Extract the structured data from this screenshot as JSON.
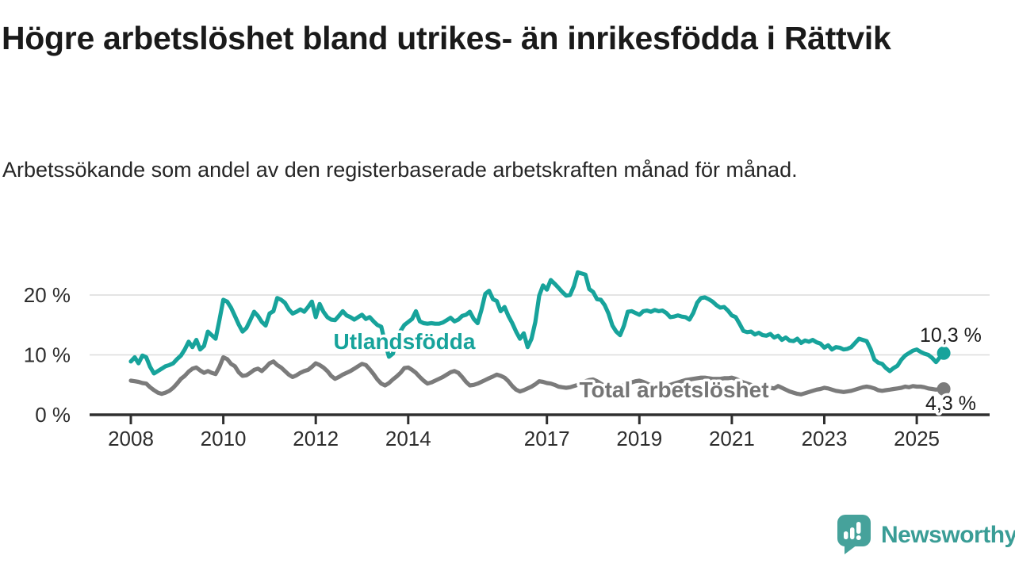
{
  "header": {
    "title": "Högre arbetslöshet bland utrikes- än inrikesfödda i Rättvik",
    "subtitle": "Arbetssökande som andel av den registerbaserade arbetskraften månad för månad."
  },
  "footer": {
    "brand": "Newsworthy",
    "logo_icon": "speech-bubble-bar-chart-icon"
  },
  "colors": {
    "foreign_born_line": "#17a39b",
    "total_line": "#7b7b7b",
    "total_label": "#757575",
    "axis": "#2f2f2f",
    "gridline": "#dcdcdc",
    "value_label": "#1a1a1a",
    "logo": "#3a9d96"
  },
  "chart_data": {
    "type": "line",
    "title": "Högre arbetslöshet bland utrikes- än inrikesfödda i Rättvik",
    "subtitle": "Arbetssökande som andel av den registerbaserade arbetskraften månad för månad.",
    "unit": "%",
    "xlim": [
      2007.1,
      2026.55
    ],
    "ylim": [
      0,
      26
    ],
    "grid": "horizontal-only",
    "legend_position": "inline-labels-on-lines",
    "x_ticks": [
      2008,
      2010,
      2012,
      2014,
      2017,
      2019,
      2021,
      2023,
      2025
    ],
    "x_tick_labels": [
      "2008",
      "2010",
      "2012",
      "2014",
      "2017",
      "2019",
      "2021",
      "2023",
      "2025"
    ],
    "y_ticks": [
      0,
      10,
      20
    ],
    "y_tick_labels": [
      "0 %",
      "10 %",
      "20 %"
    ],
    "series": [
      {
        "name": "Utlandsfödda",
        "color": "#17a39b",
        "label_color": "#17a39b",
        "end_label": "10,3 %",
        "end_value": 10.3,
        "start_year": 2008.0,
        "step_months": 1,
        "values": [
          8.9,
          9.6,
          8.6,
          9.9,
          9.6,
          8.0,
          6.9,
          7.3,
          7.7,
          8.1,
          8.3,
          8.6,
          9.3,
          9.9,
          10.9,
          12.2,
          11.3,
          12.5,
          10.9,
          11.5,
          13.9,
          13.3,
          12.7,
          15.8,
          19.2,
          18.9,
          17.9,
          16.5,
          15.1,
          13.9,
          14.5,
          15.8,
          17.2,
          16.5,
          15.5,
          14.9,
          16.9,
          17.3,
          19.5,
          19.2,
          18.7,
          17.6,
          16.9,
          17.2,
          17.6,
          17.2,
          18.0,
          18.9,
          16.3,
          18.5,
          17.2,
          16.3,
          15.9,
          15.8,
          16.5,
          17.3,
          16.6,
          16.3,
          15.9,
          16.3,
          16.7,
          16.0,
          16.3,
          15.6,
          15.0,
          14.7,
          12.0,
          9.7,
          10.2,
          12.5,
          14.0,
          15.0,
          15.5,
          16.0,
          17.3,
          15.6,
          15.3,
          15.2,
          15.3,
          15.2,
          15.2,
          15.4,
          15.8,
          16.2,
          15.6,
          15.9,
          16.5,
          16.7,
          17.2,
          16.0,
          15.3,
          17.5,
          20.2,
          20.7,
          19.3,
          19.0,
          17.3,
          18.0,
          16.5,
          15.3,
          13.9,
          12.7,
          13.6,
          11.3,
          12.7,
          15.5,
          19.9,
          21.6,
          20.9,
          22.5,
          21.9,
          21.2,
          20.5,
          19.9,
          20.0,
          21.5,
          23.8,
          23.6,
          23.4,
          21.0,
          20.5,
          19.3,
          19.2,
          18.3,
          16.9,
          14.9,
          13.9,
          13.3,
          14.9,
          17.2,
          17.3,
          17.0,
          16.7,
          17.3,
          17.4,
          17.2,
          17.5,
          17.3,
          17.4,
          17.0,
          16.3,
          16.4,
          16.6,
          16.4,
          16.3,
          15.9,
          17.0,
          18.7,
          19.5,
          19.6,
          19.3,
          18.9,
          18.3,
          17.9,
          18.0,
          17.4,
          16.6,
          16.3,
          15.2,
          14.0,
          13.8,
          13.9,
          13.4,
          13.7,
          13.3,
          13.2,
          13.5,
          12.9,
          13.2,
          12.5,
          12.9,
          12.4,
          12.3,
          12.7,
          12.0,
          12.4,
          12.2,
          12.5,
          12.1,
          11.9,
          11.2,
          11.6,
          10.9,
          11.3,
          11.2,
          10.9,
          11.0,
          11.3,
          12.0,
          12.7,
          12.5,
          12.3,
          11.0,
          9.2,
          8.7,
          8.5,
          7.8,
          7.3,
          7.8,
          8.2,
          9.2,
          9.9,
          10.3,
          10.7,
          10.9,
          10.5,
          10.2,
          10.0,
          9.5,
          8.8,
          9.6,
          10.3
        ]
      },
      {
        "name": "Total arbetslöshet",
        "color": "#7b7b7b",
        "label_color": "#757575",
        "end_label": "4,3 %",
        "end_value": 4.3,
        "start_year": 2008.0,
        "step_months": 1,
        "values": [
          5.7,
          5.6,
          5.5,
          5.3,
          5.2,
          4.6,
          4.1,
          3.7,
          3.5,
          3.7,
          4.0,
          4.5,
          5.2,
          6.0,
          6.5,
          7.2,
          7.7,
          7.9,
          7.4,
          7.0,
          7.3,
          7.0,
          6.8,
          8.0,
          9.6,
          9.3,
          8.5,
          8.1,
          7.1,
          6.5,
          6.6,
          7.0,
          7.5,
          7.7,
          7.3,
          7.9,
          8.6,
          8.9,
          8.3,
          7.9,
          7.3,
          6.7,
          6.3,
          6.6,
          7.0,
          7.3,
          7.5,
          8.0,
          8.6,
          8.3,
          7.9,
          7.3,
          6.5,
          6.0,
          6.3,
          6.7,
          7.0,
          7.3,
          7.7,
          8.1,
          8.5,
          8.3,
          7.6,
          6.8,
          5.9,
          5.2,
          4.9,
          5.3,
          5.9,
          6.4,
          7.0,
          7.8,
          7.9,
          7.5,
          7.0,
          6.3,
          5.7,
          5.2,
          5.4,
          5.7,
          6.0,
          6.3,
          6.7,
          7.1,
          7.3,
          7.0,
          6.3,
          5.5,
          4.9,
          5.0,
          5.2,
          5.5,
          5.8,
          6.1,
          6.4,
          6.7,
          6.5,
          6.2,
          5.6,
          4.8,
          4.2,
          3.9,
          4.1,
          4.4,
          4.7,
          5.1,
          5.6,
          5.5,
          5.3,
          5.2,
          5.0,
          4.7,
          4.6,
          4.5,
          4.6,
          4.8,
          5.0,
          5.3,
          5.6,
          5.8,
          5.9,
          5.6,
          5.2,
          4.8,
          4.5,
          4.4,
          4.5,
          4.7,
          4.9,
          5.1,
          5.4,
          5.6,
          5.7,
          5.5,
          5.2,
          4.9,
          4.7,
          4.6,
          4.7,
          4.9,
          5.0,
          5.2,
          5.4,
          5.6,
          5.8,
          5.9,
          6.0,
          6.1,
          6.2,
          6.2,
          6.1,
          6.0,
          6.0,
          6.0,
          6.1,
          6.1,
          6.2,
          6.0,
          5.7,
          5.4,
          5.2,
          5.0,
          4.8,
          4.7,
          4.6,
          4.5,
          4.5,
          4.4,
          4.8,
          4.5,
          4.2,
          3.9,
          3.7,
          3.5,
          3.4,
          3.6,
          3.8,
          4.0,
          4.2,
          4.3,
          4.5,
          4.4,
          4.2,
          4.0,
          3.9,
          3.8,
          3.9,
          4.0,
          4.2,
          4.4,
          4.6,
          4.7,
          4.6,
          4.4,
          4.1,
          4.0,
          4.1,
          4.2,
          4.3,
          4.4,
          4.5,
          4.7,
          4.6,
          4.8,
          4.7,
          4.7,
          4.6,
          4.4,
          4.3,
          4.2,
          4.3,
          4.3
        ]
      }
    ]
  }
}
